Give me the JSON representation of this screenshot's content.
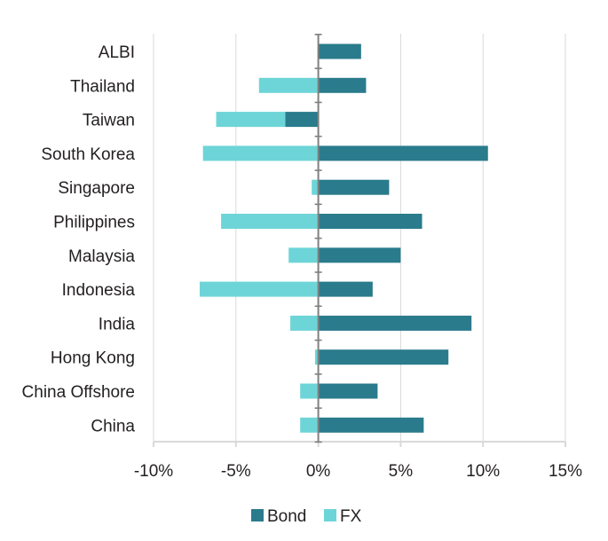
{
  "chart_data": {
    "type": "bar",
    "orientation": "horizontal",
    "stacked": true,
    "categories": [
      "ALBI",
      "Thailand",
      "Taiwan",
      "South Korea",
      "Singapore",
      "Philippines",
      "Malaysia",
      "Indonesia",
      "India",
      "Hong Kong",
      "China Offshore",
      "China"
    ],
    "series": [
      {
        "name": "Bond",
        "color": "#2a7b8c",
        "values": [
          2.6,
          2.9,
          -2.0,
          10.3,
          4.3,
          6.3,
          5.0,
          3.3,
          9.3,
          7.9,
          3.6,
          6.4
        ]
      },
      {
        "name": "FX",
        "color": "#6dd5d8",
        "values": [
          0.0,
          -3.6,
          -4.2,
          -7.0,
          -0.4,
          -5.9,
          -1.8,
          -7.2,
          -1.7,
          -0.2,
          -1.1,
          -1.1
        ]
      }
    ],
    "xlim": [
      -10,
      15
    ],
    "xticks": [
      -10,
      -5,
      0,
      5,
      10,
      15
    ],
    "xtick_labels": [
      "-10%",
      "-5%",
      "0%",
      "5%",
      "10%",
      "15%"
    ],
    "grid": "vertical",
    "legend_position": "bottom-center",
    "grid_color": "#d9d9d9",
    "axis_color": "#808080"
  }
}
